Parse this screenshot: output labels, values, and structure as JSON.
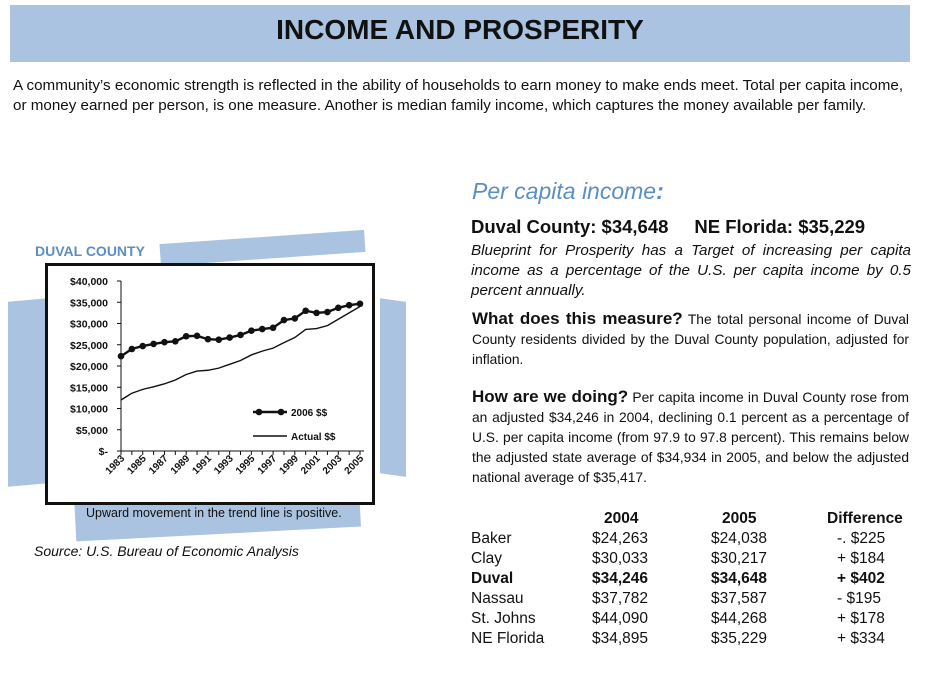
{
  "header": {
    "title": "INCOME AND PROSPERITY"
  },
  "intro": "A community’s economic strength is reflected in the ability of households to earn money to make ends meet.  Total per capita income, or money earned per person, is one measure. Another is median family income, which captures the money available per family.",
  "section": {
    "title": "Per capita income",
    "title_colon": ":",
    "headline_left": "Duval County:  $34,648",
    "headline_right": "NE Florida:  $35,229",
    "target": "Blueprint for Prosperity has a Target of increasing per capita income as a percentage of the U.S. per capita income by 0.5 percent annually.",
    "measure_lead": "What does this measure?",
    "measure_text": " The total personal income of Duval County residents divided by the Duval County population, adjusted for inflation.",
    "doing_lead": "How are we doing?",
    "doing_text": " Per capita income in Duval County rose from an adjusted $34,246 in 2004, declining 0.1 percent as a percentage of U.S. per capita income (from 97.9 to 97.8 percent). This remains below the adjusted state average of $34,934 in 2005, and below the adjusted national average of $35,417."
  },
  "chart": {
    "label": "DUVAL COUNTY",
    "caption": "Upward movement in the trend line is positive.",
    "source": "Source: U.S. Bureau of Economic Analysis"
  },
  "chart_data": {
    "type": "line",
    "title": "DUVAL COUNTY",
    "x": [
      1983,
      1984,
      1985,
      1986,
      1987,
      1988,
      1989,
      1990,
      1991,
      1992,
      1993,
      1994,
      1995,
      1996,
      1997,
      1998,
      1999,
      2000,
      2001,
      2002,
      2003,
      2004,
      2005
    ],
    "x_tick_labels": [
      "1983",
      "1985",
      "1987",
      "1989",
      "1991",
      "1993",
      "1995",
      "1997",
      "1999",
      "2001",
      "2003",
      "2005"
    ],
    "y_tick_labels": [
      "$40,000",
      "$35,000",
      "$30,000",
      "$25,000",
      "$20,000",
      "$15,000",
      "$10,000",
      "$5,000",
      "$-"
    ],
    "ylim": [
      0,
      40000
    ],
    "legend_position": "center-right",
    "series": [
      {
        "name": "2006 $$",
        "marker": "circle",
        "values": [
          22300,
          24000,
          24700,
          25200,
          25600,
          25800,
          27000,
          27100,
          26300,
          26200,
          26700,
          27300,
          28300,
          28700,
          29000,
          30800,
          31200,
          33000,
          32500,
          32700,
          33700,
          34300,
          34650
        ]
      },
      {
        "name": "Actual $$",
        "marker": "none",
        "values": [
          12000,
          13600,
          14500,
          15100,
          15800,
          16700,
          18000,
          18800,
          19000,
          19500,
          20400,
          21300,
          22600,
          23500,
          24200,
          25500,
          26700,
          28600,
          28800,
          29500,
          31000,
          32500,
          34000
        ]
      }
    ]
  },
  "table": {
    "headers": [
      "",
      "2004",
      "2005",
      "Difference"
    ],
    "rows": [
      {
        "name": "Baker",
        "y2004": "$24,263",
        "y2005": "$24,038",
        "diff": "-. $225",
        "bold": false
      },
      {
        "name": "Clay",
        "y2004": "$30,033",
        "y2005": "$30,217",
        "diff": "+ $184",
        "bold": false
      },
      {
        "name": "Duval",
        "y2004": "$34,246",
        "y2005": "$34,648",
        "diff": "+ $402",
        "bold": true
      },
      {
        "name": "Nassau",
        "y2004": "$37,782",
        "y2005": "$37,587",
        "diff": "-  $195",
        "bold": false
      },
      {
        "name": "St. Johns",
        "y2004": "$44,090",
        "y2005": "$44,268",
        "diff": "+ $178",
        "bold": false
      },
      {
        "name": "NE Florida",
        "y2004": "$34,895",
        "y2005": "$35,229",
        "diff": "+ $334",
        "bold": false
      }
    ]
  },
  "colors": {
    "accent_band": "#a9c3e0",
    "title_blue": "#5a8fc4",
    "ink": "#111111"
  }
}
